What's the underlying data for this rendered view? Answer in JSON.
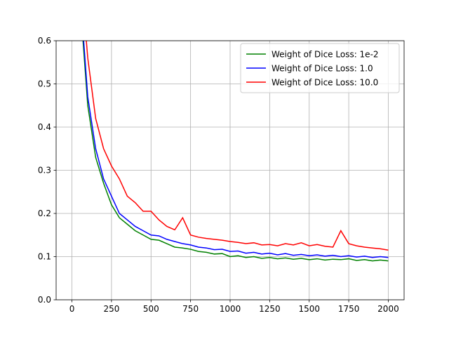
{
  "chart_data": {
    "type": "line",
    "x": [
      50,
      100,
      150,
      200,
      250,
      300,
      350,
      400,
      450,
      500,
      550,
      600,
      650,
      700,
      750,
      800,
      850,
      900,
      950,
      1000,
      1050,
      1100,
      1150,
      1200,
      1250,
      1300,
      1350,
      1400,
      1450,
      1500,
      1550,
      1600,
      1650,
      1700,
      1750,
      1800,
      1850,
      1900,
      1950,
      2000
    ],
    "series": [
      {
        "name": "Weight of Dice Loss: 1e-2",
        "color": "#008000",
        "values": [
          0.7,
          0.45,
          0.33,
          0.27,
          0.22,
          0.19,
          0.175,
          0.16,
          0.15,
          0.14,
          0.138,
          0.13,
          0.122,
          0.12,
          0.117,
          0.112,
          0.11,
          0.106,
          0.107,
          0.1,
          0.102,
          0.098,
          0.1,
          0.096,
          0.098,
          0.095,
          0.097,
          0.094,
          0.096,
          0.093,
          0.095,
          0.092,
          0.094,
          0.093,
          0.095,
          0.091,
          0.093,
          0.09,
          0.092,
          0.09
        ]
      },
      {
        "name": "Weight of Dice Loss: 1.0",
        "color": "#0000ff",
        "values": [
          0.72,
          0.47,
          0.35,
          0.28,
          0.24,
          0.2,
          0.185,
          0.17,
          0.16,
          0.15,
          0.148,
          0.14,
          0.135,
          0.13,
          0.127,
          0.122,
          0.12,
          0.116,
          0.117,
          0.112,
          0.113,
          0.108,
          0.11,
          0.106,
          0.108,
          0.104,
          0.107,
          0.103,
          0.105,
          0.102,
          0.104,
          0.101,
          0.103,
          0.1,
          0.102,
          0.099,
          0.101,
          0.098,
          0.1,
          0.098
        ]
      },
      {
        "name": "Weight of Dice Loss: 10.0",
        "color": "#ff0000",
        "values": [
          0.78,
          0.56,
          0.42,
          0.35,
          0.31,
          0.28,
          0.24,
          0.225,
          0.205,
          0.205,
          0.185,
          0.17,
          0.162,
          0.19,
          0.15,
          0.145,
          0.142,
          0.14,
          0.138,
          0.135,
          0.133,
          0.13,
          0.132,
          0.127,
          0.128,
          0.125,
          0.13,
          0.127,
          0.132,
          0.125,
          0.128,
          0.124,
          0.122,
          0.16,
          0.13,
          0.125,
          0.122,
          0.12,
          0.118,
          0.115
        ]
      }
    ],
    "xlim": [
      -100,
      2100
    ],
    "xticks": [
      0,
      250,
      500,
      750,
      1000,
      1250,
      1500,
      1750,
      2000
    ],
    "ylim": [
      0,
      0.6
    ],
    "yticks": [
      {
        "value": 0,
        "label": "0.0"
      },
      0.1,
      0.2,
      0.3,
      0.4,
      0.5,
      0.6
    ],
    "grid": true,
    "legend": "upper right"
  }
}
